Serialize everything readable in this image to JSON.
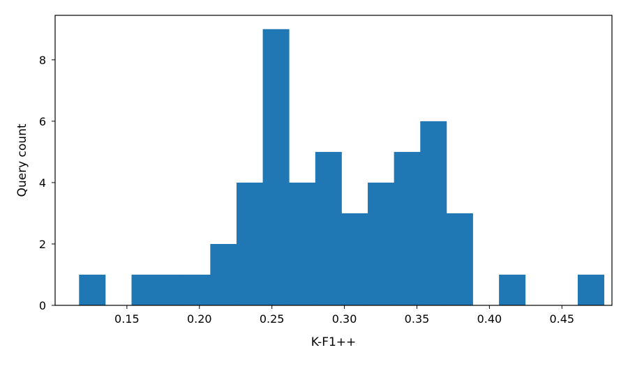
{
  "chart_data": {
    "type": "bar",
    "title": "",
    "xlabel": "K-F1++",
    "ylabel": "Query count",
    "bin_edges": [
      0.117,
      0.1351,
      0.1532,
      0.1713,
      0.1894,
      0.2075,
      0.2256,
      0.2437,
      0.2618,
      0.2799,
      0.298,
      0.3161,
      0.3342,
      0.3523,
      0.3704,
      0.3885,
      0.4066,
      0.4247,
      0.4428,
      0.4609,
      0.479
    ],
    "counts": [
      1,
      0,
      1,
      1,
      1,
      2,
      4,
      9,
      4,
      5,
      3,
      4,
      5,
      6,
      3,
      0,
      1,
      0,
      0,
      1
    ],
    "xlim": [
      0.1005,
      0.4845
    ],
    "ylim": [
      0,
      9.45
    ],
    "x_ticks": [
      0.15,
      0.2,
      0.25,
      0.3,
      0.35,
      0.4,
      0.45
    ],
    "x_tick_labels": [
      "0.15",
      "0.20",
      "0.25",
      "0.30",
      "0.35",
      "0.40",
      "0.45"
    ],
    "y_ticks": [
      0,
      2,
      4,
      6,
      8
    ],
    "y_tick_labels": [
      "0",
      "2",
      "4",
      "6",
      "8"
    ],
    "bar_color": "#1f77b4",
    "grid": false,
    "legend": "none"
  }
}
